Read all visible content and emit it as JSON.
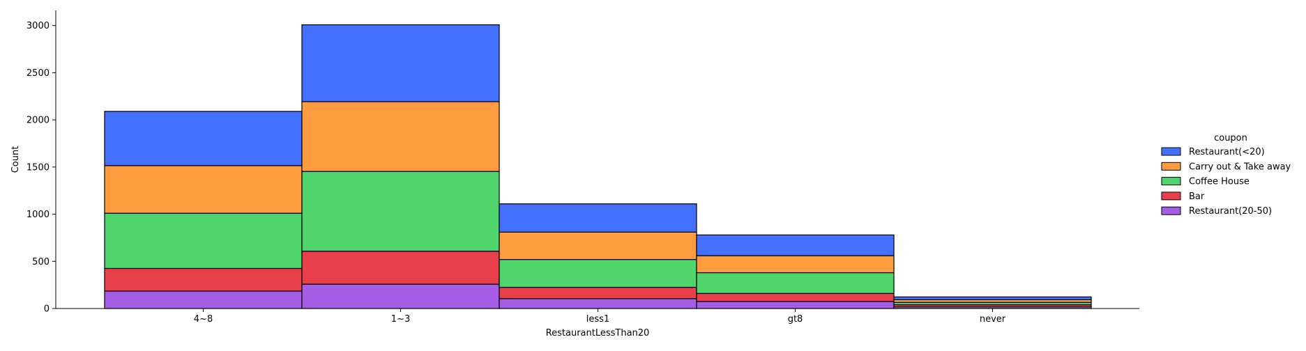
{
  "chart_data": {
    "type": "bar",
    "stacked": true,
    "xlabel": "RestaurantLessThan20",
    "ylabel": "Count",
    "categories": [
      "4~8",
      "1~3",
      "less1",
      "gt8",
      "never"
    ],
    "y_ticks": [
      0,
      500,
      1000,
      1500,
      2000,
      2500,
      3000
    ],
    "ylim": [
      0,
      3160
    ],
    "legend": {
      "title": "coupon",
      "position": "right"
    },
    "grid": false,
    "series": [
      {
        "name": "Restaurant(20-50)",
        "color": "#A45EE5",
        "values": [
          185,
          258,
          105,
          75,
          18
        ]
      },
      {
        "name": "Bar",
        "color": "#E8404A",
        "values": [
          240,
          350,
          120,
          85,
          22
        ]
      },
      {
        "name": "Coffee House",
        "color": "#50D56C",
        "values": [
          585,
          845,
          295,
          220,
          25
        ]
      },
      {
        "name": "Carry out & Take away",
        "color": "#FF9C40",
        "values": [
          505,
          740,
          290,
          180,
          28
        ]
      },
      {
        "name": "Restaurant(<20)",
        "color": "#4370FE",
        "values": [
          575,
          815,
          300,
          220,
          30
        ]
      }
    ],
    "legend_order": [
      "Restaurant(<20)",
      "Carry out & Take away",
      "Coffee House",
      "Bar",
      "Restaurant(20-50)"
    ]
  }
}
